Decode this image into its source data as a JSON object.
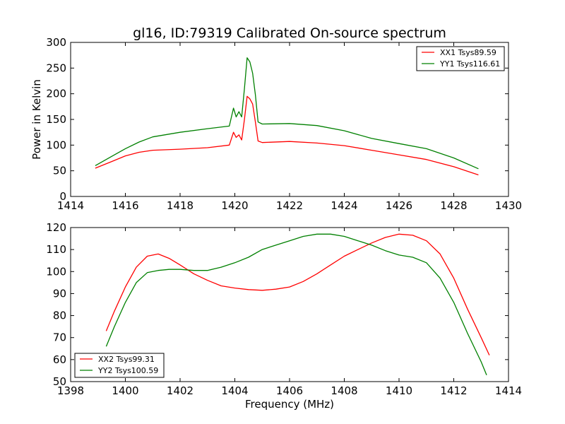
{
  "figure": {
    "title": "gl16, ID:79319 Calibrated On-source spectrum",
    "xlabel": "Frequency (MHz)"
  },
  "chart_data": [
    {
      "type": "line",
      "title": "gl16, ID:79319 Calibrated On-source spectrum",
      "xlabel": "",
      "ylabel": "Power in Kelvin",
      "xlim": [
        1414,
        1430
      ],
      "ylim": [
        0,
        300
      ],
      "xticks": [
        1414,
        1416,
        1418,
        1420,
        1422,
        1424,
        1426,
        1428,
        1430
      ],
      "yticks": [
        0,
        50,
        100,
        150,
        200,
        250,
        300
      ],
      "grid": false,
      "legend_position": "top-right",
      "series": [
        {
          "name": "XX1 Tsys89.59",
          "color": "#ff0000",
          "x": [
            1414.9,
            1415.5,
            1416.0,
            1416.5,
            1417.0,
            1418.0,
            1419.0,
            1419.8,
            1419.95,
            1420.05,
            1420.15,
            1420.25,
            1420.35,
            1420.45,
            1420.55,
            1420.65,
            1420.75,
            1420.85,
            1421.0,
            1422.0,
            1423.0,
            1424.0,
            1425.0,
            1426.0,
            1427.0,
            1428.0,
            1428.9
          ],
          "y": [
            55,
            68,
            79,
            86,
            90,
            92,
            95,
            100,
            125,
            115,
            120,
            110,
            150,
            195,
            190,
            180,
            145,
            108,
            105,
            107,
            104,
            99,
            90,
            81,
            72,
            58,
            42
          ]
        },
        {
          "name": "YY1 Tsys116.61",
          "color": "#008000",
          "x": [
            1414.9,
            1415.5,
            1416.0,
            1416.5,
            1417.0,
            1418.0,
            1419.0,
            1419.8,
            1419.95,
            1420.05,
            1420.15,
            1420.25,
            1420.35,
            1420.45,
            1420.55,
            1420.65,
            1420.75,
            1420.85,
            1421.0,
            1422.0,
            1423.0,
            1424.0,
            1425.0,
            1426.0,
            1427.0,
            1428.0,
            1428.9
          ],
          "y": [
            60,
            78,
            93,
            106,
            116,
            125,
            132,
            137,
            172,
            155,
            165,
            155,
            210,
            270,
            262,
            240,
            198,
            145,
            141,
            142,
            138,
            128,
            113,
            103,
            93,
            75,
            54
          ]
        }
      ]
    },
    {
      "type": "line",
      "title": "",
      "xlabel": "Frequency (MHz)",
      "ylabel": "",
      "xlim": [
        1398,
        1414
      ],
      "ylim": [
        50,
        120
      ],
      "xticks": [
        1398,
        1400,
        1402,
        1404,
        1406,
        1408,
        1410,
        1412,
        1414
      ],
      "yticks": [
        50,
        60,
        70,
        80,
        90,
        100,
        110,
        120
      ],
      "grid": false,
      "legend_position": "bottom-left",
      "series": [
        {
          "name": "XX2 Tsys99.31",
          "color": "#ff0000",
          "x": [
            1399.3,
            1399.6,
            1400.0,
            1400.4,
            1400.8,
            1401.2,
            1401.6,
            1402.0,
            1402.5,
            1403.0,
            1403.5,
            1404.0,
            1404.5,
            1405.0,
            1405.5,
            1406.0,
            1406.5,
            1407.0,
            1407.5,
            1408.0,
            1408.5,
            1409.0,
            1409.5,
            1410.0,
            1410.5,
            1411.0,
            1411.5,
            1412.0,
            1412.5,
            1413.0,
            1413.3
          ],
          "y": [
            73,
            82,
            93,
            102,
            107,
            108,
            106,
            103,
            99,
            96,
            93.5,
            92.5,
            91.8,
            91.5,
            92,
            93,
            95.5,
            99,
            103,
            107,
            110,
            113,
            115.5,
            117,
            116.5,
            114,
            108,
            97,
            83,
            70,
            62
          ]
        },
        {
          "name": "YY2 Tsys100.59",
          "color": "#008000",
          "x": [
            1399.3,
            1399.6,
            1400.0,
            1400.4,
            1400.8,
            1401.2,
            1401.6,
            1402.0,
            1402.5,
            1403.0,
            1403.5,
            1404.0,
            1404.5,
            1405.0,
            1405.5,
            1406.0,
            1406.5,
            1407.0,
            1407.5,
            1408.0,
            1408.5,
            1409.0,
            1409.5,
            1410.0,
            1410.5,
            1411.0,
            1411.5,
            1412.0,
            1412.5,
            1413.0,
            1413.2
          ],
          "y": [
            66,
            75,
            86,
            95,
            99.5,
            100.5,
            101,
            101,
            100.5,
            100.5,
            102,
            104,
            106.5,
            110,
            112,
            114,
            116,
            117,
            117,
            116,
            114,
            112,
            109.5,
            107.5,
            106.5,
            104,
            97,
            86,
            72,
            59,
            53
          ]
        }
      ]
    }
  ]
}
